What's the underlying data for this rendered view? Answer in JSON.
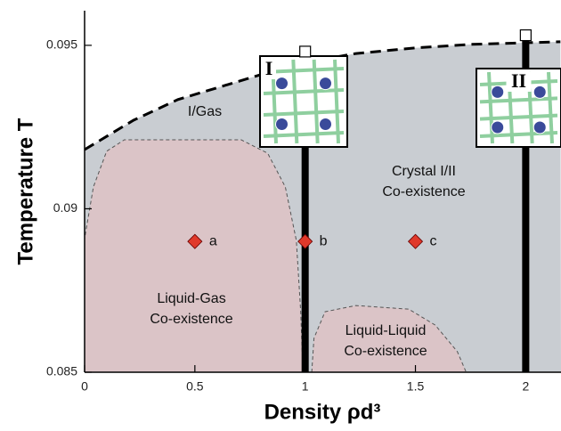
{
  "chart_data": {
    "type": "phase",
    "x_label": "Density ρd³",
    "y_label": "Temperature T",
    "xlim": [
      0,
      2.16
    ],
    "ylim": [
      0.085,
      0.09606
    ],
    "xticks": [
      0,
      0.5,
      1,
      1.5,
      2
    ],
    "yticks": [
      0.085,
      0.09,
      0.095
    ],
    "background_color": "#c9cdd2",
    "gas_boundary": {
      "x": [
        0,
        0.222,
        0.423,
        0.625,
        0.827,
        1.0,
        1.23,
        1.5,
        1.758,
        2.0,
        2.157
      ],
      "y": [
        0.09181,
        0.09271,
        0.09334,
        0.09375,
        0.09416,
        0.09448,
        0.09475,
        0.09492,
        0.09503,
        0.09508,
        0.09511
      ]
    },
    "regions": [
      {
        "color": "#dbc4c7",
        "x": [
          0,
          0,
          0.04,
          0.1,
          0.18,
          0.71,
          0.83,
          0.91,
          0.96,
          0.98,
          0.99
        ],
        "y": [
          0.085,
          0.08909,
          0.09067,
          0.09176,
          0.09211,
          0.09211,
          0.0917,
          0.09067,
          0.08903,
          0.08685,
          0.085
        ]
      },
      {
        "color": "#dbc4c7",
        "x": [
          1.03,
          1.04,
          1.09,
          1.23,
          1.47,
          1.59,
          1.69,
          1.73
        ],
        "y": [
          0.085,
          0.08604,
          0.08685,
          0.08704,
          0.08693,
          0.08644,
          0.08563,
          0.085
        ]
      }
    ],
    "crystal_lines": {
      "x": [
        1,
        2
      ],
      "y_top": [
        0.0947,
        0.0952
      ],
      "labels": [
        "I",
        "II"
      ]
    },
    "points": {
      "x": [
        0.5,
        1,
        1.5
      ],
      "y": [
        0.089,
        0.089,
        0.089
      ],
      "labels": [
        "a",
        "b",
        "c"
      ],
      "color": "#e0392b"
    },
    "annotations": [
      [
        "I/Gas"
      ],
      [
        "Crystal I/II",
        "Co-existence"
      ],
      [
        "Liquid-Gas",
        "Co-existence"
      ],
      [
        "Liquid-Liquid",
        "Co-existence"
      ]
    ]
  }
}
